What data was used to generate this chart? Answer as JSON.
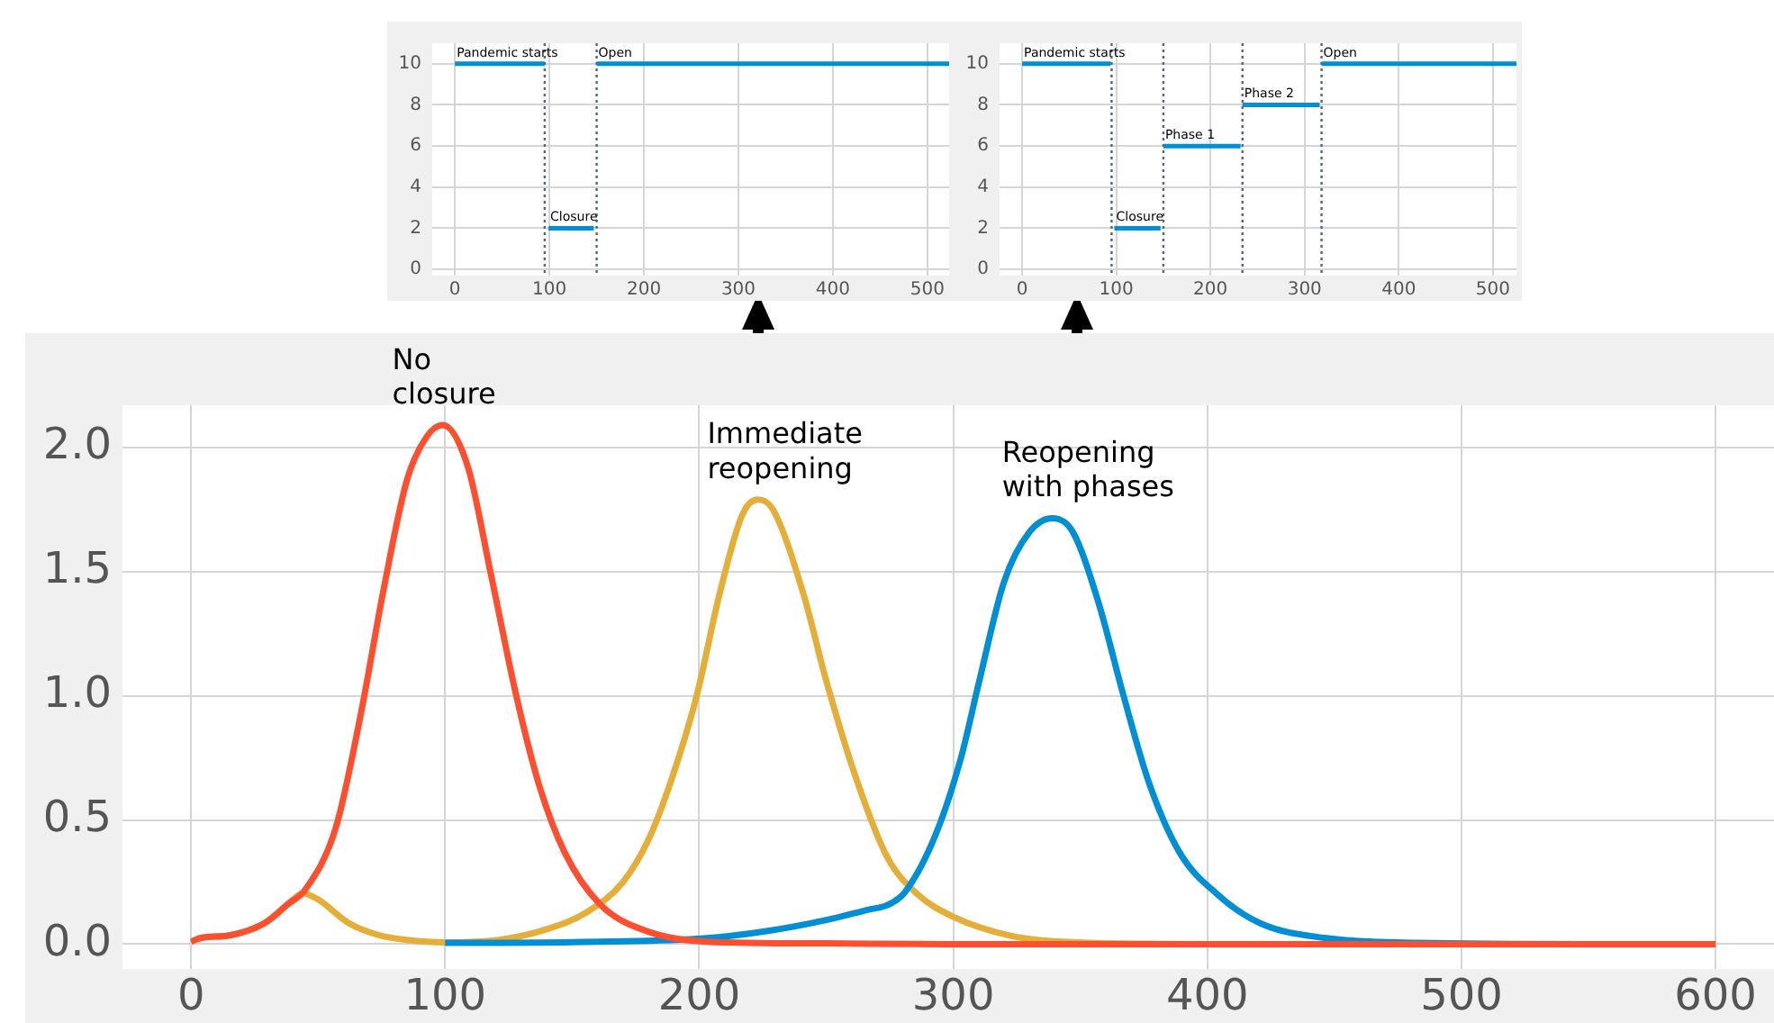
{
  "chart_data": [
    {
      "type": "line",
      "xlim": [
        -24,
        523
      ],
      "ylim": [
        -0.3,
        11
      ],
      "xticks": [
        0,
        100,
        200,
        300,
        400,
        500
      ],
      "yticks": [
        0,
        2,
        4,
        6,
        8,
        10
      ],
      "grid": true,
      "series": [
        {
          "color": "#008fd5",
          "x": [
            0,
            95
          ],
          "values": [
            10,
            10
          ]
        },
        {
          "color": "#008fd5",
          "x": [
            99,
            147
          ],
          "values": [
            2,
            2
          ]
        },
        {
          "color": "#008fd5",
          "x": [
            150,
            523
          ],
          "values": [
            10,
            10
          ]
        }
      ],
      "ref_lines": [
        {
          "axis": "x",
          "value": 95,
          "color": "#556677",
          "line_style": "dotted"
        },
        {
          "axis": "x",
          "value": 150,
          "color": "#556677",
          "line_style": "dotted"
        }
      ],
      "annotations": [
        {
          "text": "Pandemic starts",
          "x": 0,
          "y": 10
        },
        {
          "text": "Closure",
          "x": 99,
          "y": 2
        },
        {
          "text": "Open",
          "x": 150,
          "y": 10
        }
      ]
    },
    {
      "type": "line",
      "xlim": [
        -24,
        525
      ],
      "ylim": [
        -0.3,
        11
      ],
      "xticks": [
        0,
        100,
        200,
        300,
        400,
        500
      ],
      "yticks": [
        0,
        2,
        4,
        6,
        8,
        10
      ],
      "grid": true,
      "series": [
        {
          "color": "#008fd5",
          "x": [
            0,
            94
          ],
          "values": [
            10,
            10
          ]
        },
        {
          "color": "#008fd5",
          "x": [
            98,
            147
          ],
          "values": [
            2,
            2
          ]
        },
        {
          "color": "#008fd5",
          "x": [
            150,
            232
          ],
          "values": [
            6,
            6
          ]
        },
        {
          "color": "#008fd5",
          "x": [
            234,
            316
          ],
          "values": [
            8,
            8
          ]
        },
        {
          "color": "#008fd5",
          "x": [
            318,
            525
          ],
          "values": [
            10,
            10
          ]
        }
      ],
      "ref_lines": [
        {
          "axis": "x",
          "value": 95,
          "color": "#556677",
          "line_style": "dotted"
        },
        {
          "axis": "x",
          "value": 150,
          "color": "#556677",
          "line_style": "dotted"
        },
        {
          "axis": "x",
          "value": 234,
          "color": "#556677",
          "line_style": "dotted"
        },
        {
          "axis": "x",
          "value": 318,
          "color": "#556677",
          "line_style": "dotted"
        }
      ],
      "annotations": [
        {
          "text": "Pandemic starts",
          "x": 0,
          "y": 10
        },
        {
          "text": "Closure",
          "x": 98,
          "y": 2
        },
        {
          "text": "Phase 1",
          "x": 150,
          "y": 6
        },
        {
          "text": "Phase 2",
          "x": 234,
          "y": 8
        },
        {
          "text": "Open",
          "x": 318,
          "y": 10
        }
      ]
    },
    {
      "type": "line",
      "xlim": [
        -27,
        623
      ],
      "ylim": [
        -0.1,
        2.17
      ],
      "xticks": [
        0,
        100,
        200,
        300,
        400,
        500,
        600
      ],
      "yticks": [
        {
          "value": 0,
          "label": "0.0"
        },
        {
          "value": 0.5,
          "label": "0.5"
        },
        {
          "value": 1,
          "label": "1.0"
        },
        {
          "value": 1.5,
          "label": "1.5"
        },
        {
          "value": 2,
          "label": "2.0"
        }
      ],
      "grid": true,
      "series": [
        {
          "name": "No closure",
          "color": "#fc4f30",
          "x": [
            0,
            4,
            15,
            29,
            38,
            45,
            57,
            66.5,
            76,
            85,
            92.5,
            99,
            109,
            118,
            128,
            137,
            147,
            161,
            180,
            203,
            250,
            300,
            400,
            500,
            600
          ],
          "values": [
            0.01,
            0.025,
            0.035,
            0.085,
            0.16,
            0.22,
            0.47,
            0.91,
            1.44,
            1.87,
            2.04,
            2.09,
            1.92,
            1.49,
            1.0,
            0.64,
            0.37,
            0.16,
            0.05,
            0.01,
            0.003,
            0,
            0,
            0,
            0
          ]
        },
        {
          "name": "Reopening with phases",
          "color": "#008fd5",
          "x": [
            100,
            150,
            203,
            227,
            250,
            267,
            274,
            281,
            293,
            303,
            310,
            320,
            330,
            339,
            347,
            357,
            367,
            377,
            389,
            404,
            421,
            446,
            483,
            550,
            600
          ],
          "values": [
            0.005,
            0.008,
            0.024,
            0.053,
            0.097,
            0.14,
            0.157,
            0.21,
            0.44,
            0.75,
            1.05,
            1.46,
            1.66,
            1.715,
            1.66,
            1.38,
            1.0,
            0.65,
            0.37,
            0.2,
            0.083,
            0.025,
            0.005,
            0,
            0
          ]
        },
        {
          "name": "Immediate reopening",
          "color": "#e5ae38",
          "x": [
            0,
            4,
            15,
            29,
            38,
            44,
            50,
            62,
            74,
            85,
            100,
            121,
            140,
            156,
            170,
            180,
            189,
            199,
            208,
            217,
            223,
            229,
            241,
            250,
            262,
            274,
            286,
            300,
            323,
            347,
            400,
            500,
            600
          ],
          "values": [
            0.01,
            0.025,
            0.035,
            0.085,
            0.16,
            0.205,
            0.18,
            0.085,
            0.036,
            0.017,
            0.007,
            0.017,
            0.06,
            0.13,
            0.25,
            0.42,
            0.66,
            1.0,
            1.41,
            1.73,
            1.79,
            1.75,
            1.41,
            1.06,
            0.66,
            0.35,
            0.2,
            0.11,
            0.033,
            0.008,
            0,
            0,
            0
          ]
        }
      ]
    }
  ]
}
